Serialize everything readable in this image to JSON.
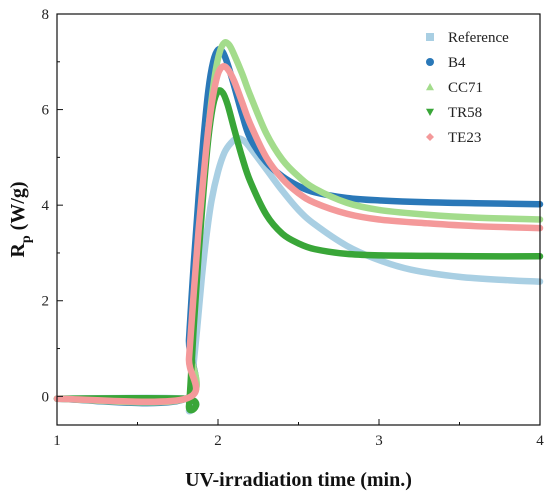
{
  "chart_data": {
    "type": "line",
    "title": "",
    "xlabel": "UV-irradiation time (min.)",
    "ylabel_main": "R",
    "ylabel_sub": "p",
    "ylabel_unit": "(W/g)",
    "xlim": [
      1,
      4
    ],
    "ylim": [
      -0.6,
      8
    ],
    "xticks": [
      1,
      2,
      3,
      4
    ],
    "yticks": [
      0,
      2,
      4,
      6,
      8
    ],
    "grid": false,
    "legend_position": "top-right",
    "series": [
      {
        "name": "Reference",
        "color": "#a9cfe3",
        "marker": "square",
        "x": [
          1.0,
          1.8,
          1.82,
          1.84,
          1.87,
          1.9,
          1.93,
          1.96,
          2.0,
          2.04,
          2.08,
          2.12,
          2.16,
          2.2,
          2.3,
          2.4,
          2.5,
          2.6,
          2.8,
          3.0,
          3.2,
          3.5,
          3.8,
          4.0
        ],
        "y": [
          -0.05,
          -0.05,
          -0.3,
          0.4,
          1.4,
          2.5,
          3.4,
          4.1,
          4.7,
          5.1,
          5.3,
          5.4,
          5.35,
          5.2,
          4.75,
          4.3,
          3.9,
          3.6,
          3.15,
          2.85,
          2.65,
          2.5,
          2.43,
          2.4
        ]
      },
      {
        "name": "B4",
        "color": "#2a78b8",
        "marker": "circle",
        "x": [
          1.0,
          1.8,
          1.82,
          1.85,
          1.88,
          1.91,
          1.94,
          1.97,
          2.0,
          2.03,
          2.06,
          2.1,
          2.15,
          2.2,
          2.3,
          2.4,
          2.5,
          2.6,
          2.8,
          3.0,
          3.3,
          3.6,
          4.0
        ],
        "y": [
          -0.05,
          -0.05,
          1.2,
          2.8,
          4.2,
          5.4,
          6.4,
          7.0,
          7.25,
          7.2,
          6.95,
          6.5,
          5.9,
          5.4,
          4.9,
          4.6,
          4.4,
          4.27,
          4.15,
          4.1,
          4.06,
          4.04,
          4.02
        ]
      },
      {
        "name": "CC71",
        "color": "#a3dc8c",
        "marker": "triangle-up",
        "x": [
          1.0,
          1.8,
          1.83,
          1.86,
          1.89,
          1.92,
          1.95,
          1.98,
          2.01,
          2.04,
          2.07,
          2.1,
          2.15,
          2.2,
          2.3,
          2.4,
          2.5,
          2.6,
          2.8,
          3.0,
          3.3,
          3.6,
          4.0
        ],
        "y": [
          -0.05,
          -0.05,
          1.0,
          2.3,
          3.6,
          4.8,
          5.9,
          6.7,
          7.2,
          7.4,
          7.35,
          7.15,
          6.75,
          6.3,
          5.5,
          4.95,
          4.6,
          4.35,
          4.05,
          3.9,
          3.8,
          3.74,
          3.7
        ]
      },
      {
        "name": "TR58",
        "color": "#39a638",
        "marker": "triangle-down",
        "x": [
          1.0,
          1.8,
          1.82,
          1.85,
          1.88,
          1.91,
          1.94,
          1.97,
          2.0,
          2.03,
          2.06,
          2.1,
          2.15,
          2.2,
          2.3,
          2.4,
          2.5,
          2.6,
          2.8,
          3.0,
          3.3,
          3.6,
          4.0
        ],
        "y": [
          -0.05,
          -0.05,
          -0.2,
          1.5,
          3.0,
          4.3,
          5.4,
          6.1,
          6.38,
          6.35,
          6.1,
          5.6,
          5.0,
          4.5,
          3.8,
          3.4,
          3.2,
          3.08,
          2.98,
          2.95,
          2.94,
          2.93,
          2.93
        ]
      },
      {
        "name": "TE23",
        "color": "#f4999a",
        "marker": "diamond",
        "x": [
          1.0,
          1.8,
          1.82,
          1.85,
          1.88,
          1.91,
          1.94,
          1.97,
          2.0,
          2.03,
          2.06,
          2.1,
          2.15,
          2.2,
          2.3,
          2.4,
          2.5,
          2.6,
          2.8,
          3.0,
          3.3,
          3.6,
          4.0
        ],
        "y": [
          -0.05,
          -0.05,
          0.8,
          2.2,
          3.5,
          4.6,
          5.6,
          6.3,
          6.75,
          6.9,
          6.85,
          6.6,
          6.15,
          5.7,
          5.0,
          4.55,
          4.25,
          4.05,
          3.82,
          3.7,
          3.62,
          3.56,
          3.52
        ]
      }
    ]
  }
}
